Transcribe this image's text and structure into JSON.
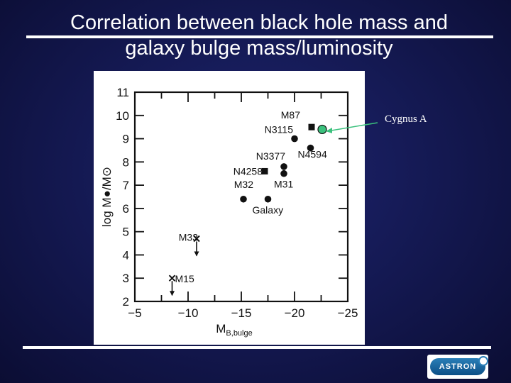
{
  "slide": {
    "title_line1": "Correlation between black hole mass and",
    "title_line2": "galaxy bulge mass/luminosity",
    "logo_text": "ASTRON"
  },
  "colors": {
    "background": "#151a55",
    "text": "#ffffff",
    "marker": "#111111",
    "cygnus_marker": "#3bc17d"
  },
  "chart_data": {
    "type": "scatter",
    "xlabel_main": "M",
    "xlabel_sub": "B,bulge",
    "ylabel": "log M●/M⊙",
    "xlim": [
      -5,
      -25
    ],
    "ylim": [
      2,
      11
    ],
    "x_ticks": [
      "−5",
      "−10",
      "−15",
      "−20",
      "−25"
    ],
    "y_ticks": [
      "2",
      "3",
      "4",
      "5",
      "6",
      "7",
      "8",
      "9",
      "10",
      "11"
    ],
    "points": [
      {
        "label": "M87",
        "x": -21.6,
        "y": 9.5,
        "marker": "square"
      },
      {
        "label": "N3115",
        "x": -20.0,
        "y": 9.0,
        "marker": "circle"
      },
      {
        "label": "N4594",
        "x": -21.5,
        "y": 8.6,
        "marker": "circle"
      },
      {
        "label": "N3377",
        "x": -19.0,
        "y": 7.8,
        "marker": "circle"
      },
      {
        "label": "N4258",
        "x": -17.2,
        "y": 7.6,
        "marker": "square"
      },
      {
        "label": "M31",
        "x": -19.0,
        "y": 7.5,
        "marker": "circle"
      },
      {
        "label": "M32",
        "x": -15.2,
        "y": 6.4,
        "marker": "circle"
      },
      {
        "label": "Galaxy",
        "x": -17.5,
        "y": 6.4,
        "marker": "circle"
      },
      {
        "label": "M33",
        "x": -10.8,
        "y": 4.7,
        "marker": "upper-limit"
      },
      {
        "label": "M15",
        "x": -8.5,
        "y": 3.0,
        "marker": "upper-limit"
      }
    ],
    "annotation": {
      "label": "Cygnus A",
      "x": -22.6,
      "y": 9.4
    }
  }
}
